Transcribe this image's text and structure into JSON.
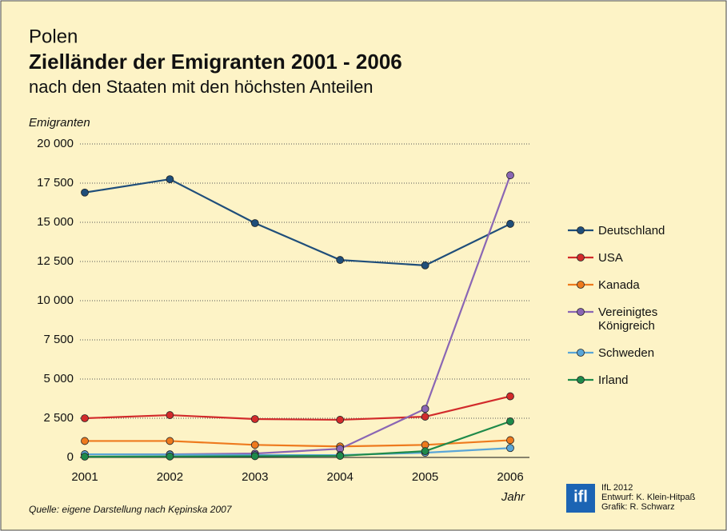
{
  "chart_data": {
    "type": "line",
    "header": "Polen",
    "title": "Zielländer der Emigranten 2001 - 2006",
    "subtitle": "nach den Staaten mit den höchsten Anteilen",
    "y_label": "Emigranten",
    "x_label": "Jahr",
    "categories": [
      "2001",
      "2002",
      "2003",
      "2004",
      "2005",
      "2006"
    ],
    "series": [
      {
        "name": "Deutschland",
        "color": "#1f4e7a",
        "values": [
          16900,
          17750,
          14950,
          12600,
          12250,
          14900
        ]
      },
      {
        "name": "USA",
        "color": "#d22b2b",
        "values": [
          2500,
          2700,
          2450,
          2400,
          2600,
          3900
        ]
      },
      {
        "name": "Kanada",
        "color": "#ee7a1e",
        "values": [
          1050,
          1050,
          800,
          700,
          800,
          1100
        ]
      },
      {
        "name": "Vereinigtes Königreich",
        "color": "#8a66b4",
        "values": [
          200,
          200,
          250,
          550,
          3100,
          18000
        ]
      },
      {
        "name": "Schweden",
        "color": "#5aa6d8",
        "values": [
          200,
          180,
          150,
          150,
          300,
          600
        ]
      },
      {
        "name": "Irland",
        "color": "#1e8a4a",
        "values": [
          50,
          60,
          80,
          100,
          400,
          2300
        ]
      }
    ],
    "ylim": [
      0,
      20000
    ],
    "yticks": [
      0,
      {
        "value": 2500,
        "label": "2 500"
      },
      {
        "value": 5000,
        "label": "5 000"
      },
      {
        "value": 7500,
        "label": "7 500"
      },
      {
        "value": 10000,
        "label": "10 000"
      },
      {
        "value": 12500,
        "label": "12 500"
      },
      {
        "value": 15000,
        "label": "15 000"
      },
      {
        "value": 17500,
        "label": "17 500"
      },
      {
        "value": 20000,
        "label": "20 000"
      }
    ],
    "grid": true,
    "legend": "right",
    "source": "Quelle: eigene Darstellung nach Kępinska 2007",
    "logo": "ifl",
    "credits": [
      "IfL 2012",
      "Entwurf: K. Klein-Hitpaß",
      "Grafik: R. Schwarz"
    ]
  }
}
